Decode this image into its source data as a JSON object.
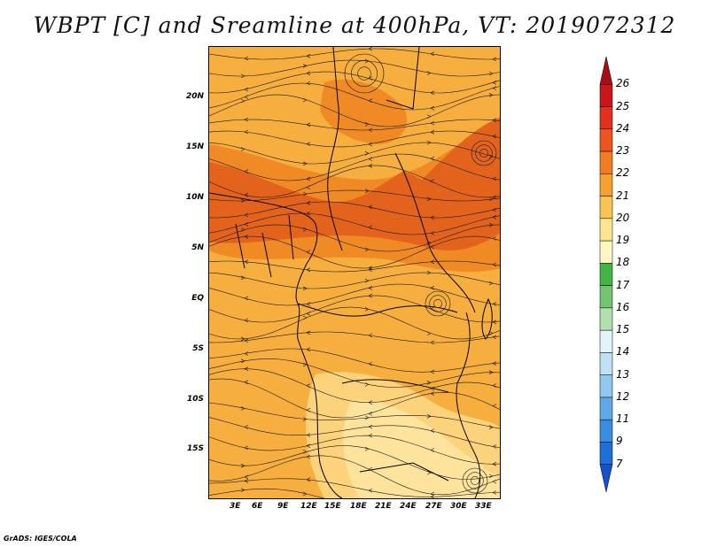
{
  "title": "WBPT [C] and Sreamline at 400hPa, VT: 2019072312",
  "credit": "GrADS: IGES/COLA",
  "map": {
    "lat_labels": [
      "20N",
      "15N",
      "10N",
      "5N",
      "EQ",
      "5S",
      "10S",
      "15S"
    ],
    "lon_labels": [
      "3E",
      "6E",
      "9E",
      "12E",
      "15E",
      "18E",
      "21E",
      "24E",
      "27E",
      "30E",
      "33E"
    ],
    "fill_colors": {
      "base": "#f6ae3e",
      "warm": "#f08a24",
      "hot": "#e4631c",
      "cool": "#fcd27a",
      "pale": "#fde39c"
    }
  },
  "colorbar": {
    "labels": [
      "26",
      "25",
      "24",
      "23",
      "22",
      "21",
      "20",
      "19",
      "18",
      "17",
      "16",
      "15",
      "14",
      "13",
      "12",
      "11",
      "9",
      "7"
    ],
    "colors": [
      "#a50f15",
      "#c8161d",
      "#e0311f",
      "#ec5420",
      "#f27d1e",
      "#f6a12e",
      "#f9c355",
      "#fde48f",
      "#fff7c2",
      "#41b643",
      "#74c476",
      "#b2e0ad",
      "#e2f3fb",
      "#bfe0f5",
      "#92c8ef",
      "#5ea9e6",
      "#3a8ce0",
      "#1f6fd8",
      "#1352c8"
    ]
  }
}
